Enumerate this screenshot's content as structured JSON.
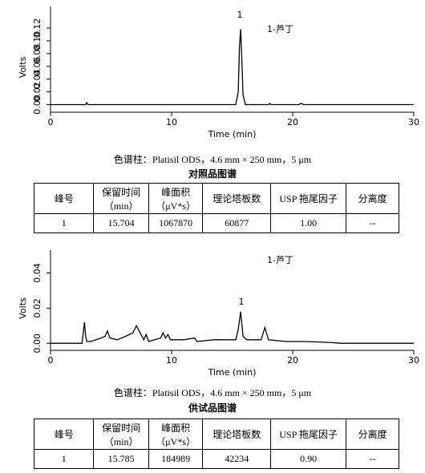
{
  "chart_data": [
    {
      "type": "line",
      "ylabel": "Volts",
      "xlabel": "Time (min)",
      "color": "#000000",
      "x": [
        0,
        2.9,
        3.0,
        3.1,
        15.3,
        15.5,
        15.6,
        15.7,
        15.8,
        15.9,
        16.1,
        18.0,
        18.1,
        18.2,
        20.5,
        20.7,
        20.9,
        30
      ],
      "values": [
        0,
        0,
        0.003,
        0,
        0,
        0.02,
        0.09,
        0.118,
        0.07,
        0.015,
        0,
        0,
        0.002,
        0,
        0,
        0.002,
        0,
        0
      ],
      "xlim": [
        0,
        30
      ],
      "xticks": [
        0,
        10,
        20,
        30
      ],
      "ylim": [
        -0.012,
        0.154
      ],
      "yticks": [
        {
          "value": 0,
          "label": "0.00"
        },
        {
          "value": 0.02,
          "label": "0.02"
        },
        {
          "value": 0.04,
          "label": "0.04"
        },
        {
          "value": 0.06,
          "label": "0.06"
        },
        {
          "value": 0.08,
          "label": "0.08"
        },
        {
          "value": 0.1,
          "label": "0.10"
        },
        {
          "value": 0.12,
          "label": "0.12"
        }
      ],
      "annotations": [
        "1",
        "1-芦丁"
      ]
    },
    {
      "type": "line",
      "ylabel": "Volts",
      "xlabel": "Time (min)",
      "color": "#000000",
      "x": [
        0,
        2.6,
        2.8,
        2.9,
        3.0,
        3.3,
        4.2,
        4.5,
        4.7,
        4.9,
        5.5,
        6.2,
        6.8,
        7.1,
        7.4,
        7.7,
        7.9,
        8.1,
        8.6,
        9.1,
        9.3,
        9.5,
        9.7,
        9.9,
        11.0,
        11.9,
        12.1,
        13.5,
        15.3,
        15.5,
        15.7,
        15.9,
        16.2,
        17.4,
        17.7,
        18.0,
        19.5,
        21.0,
        23.0,
        24.0,
        30
      ],
      "values": [
        0,
        0,
        0.012,
        0.004,
        0.001,
        0.001,
        0.003,
        0.004,
        0.007,
        0.003,
        0.002,
        0.004,
        0.006,
        0.01,
        0.006,
        0.002,
        0.005,
        0.001,
        0.002,
        0.003,
        0.006,
        0.003,
        0.005,
        0.002,
        0.002,
        0.003,
        0.001,
        0.002,
        0.002,
        0.008,
        0.018,
        0.004,
        0.002,
        0.002,
        0.009,
        0.002,
        0.001,
        0.001,
        0.0005,
        0,
        0
      ],
      "xlim": [
        0,
        30
      ],
      "xticks": [
        0,
        10,
        20,
        30
      ],
      "ylim": [
        -0.004,
        0.053
      ],
      "yticks": [
        {
          "value": 0,
          "label": "0.00"
        },
        {
          "value": 0.02,
          "label": "0.02"
        },
        {
          "value": 0.04,
          "label": "0.04"
        }
      ],
      "annotations": [
        "1",
        "1-芦丁"
      ]
    }
  ],
  "sections": [
    {
      "caption": "色谱柱：Platisil ODS，4.6 mm × 250 mm，5 μm",
      "title": "对照品图谱",
      "table": {
        "header": [
          [
            "峰号"
          ],
          [
            "保留时间",
            "（min）"
          ],
          [
            "峰面积",
            "（μV*s）"
          ],
          [
            "理论塔板数"
          ],
          [
            "USP 拖尾因子"
          ],
          [
            "分离度"
          ]
        ],
        "row": [
          "1",
          "15.704",
          "1067870",
          "60877",
          "1.00",
          "--"
        ]
      }
    },
    {
      "caption": "色谱柱：Platisil ODS，4.6 mm × 250 mm，5 μm",
      "title": "供试品图谱",
      "table": {
        "header": [
          [
            "峰号"
          ],
          [
            "保留时间",
            "（min）"
          ],
          [
            "峰面积",
            "（μV*s）"
          ],
          [
            "理论塔板数"
          ],
          [
            "USP 拖尾因子"
          ],
          [
            "分离度"
          ]
        ],
        "row": [
          "1",
          "15.785",
          "184989",
          "42234",
          "0.90",
          "--"
        ]
      }
    }
  ]
}
